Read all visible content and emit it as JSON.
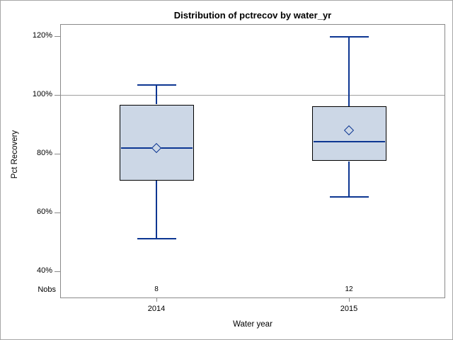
{
  "chart_data": {
    "type": "boxplot",
    "title": "Distribution of pctrecov by water_yr",
    "xlabel": "Water year",
    "ylabel": "Pct Recovery",
    "categories": [
      "2014",
      "2015"
    ],
    "nobs_header": "Nobs",
    "yticks": [
      {
        "value": 40,
        "label": "40%"
      },
      {
        "value": 60,
        "label": "60%"
      },
      {
        "value": 80,
        "label": "80%"
      },
      {
        "value": 100,
        "label": "100%"
      },
      {
        "value": 120,
        "label": "120%"
      }
    ],
    "ylim": [
      30.8,
      124.2
    ],
    "refline": 100,
    "grid": false,
    "legend": "none",
    "series": [
      {
        "category": "2014",
        "nobs": "8",
        "low": 51.0,
        "q1": 71.0,
        "median": 82.0,
        "mean": 82.0,
        "q3": 96.8,
        "high": 103.4
      },
      {
        "category": "2015",
        "nobs": "12",
        "low": 65.2,
        "q1": 77.5,
        "median": 84.1,
        "mean": 87.9,
        "q3": 96.2,
        "high": 119.8
      }
    ],
    "colors": {
      "box_fill": "#ccd7e6",
      "box_border": "#000000",
      "line": "#0d3692",
      "frame": "#8a8a8a",
      "refline": "#a0a0a0",
      "text": "#000000",
      "background": "#ffffff",
      "outer_border": "#a6a6a6"
    }
  }
}
